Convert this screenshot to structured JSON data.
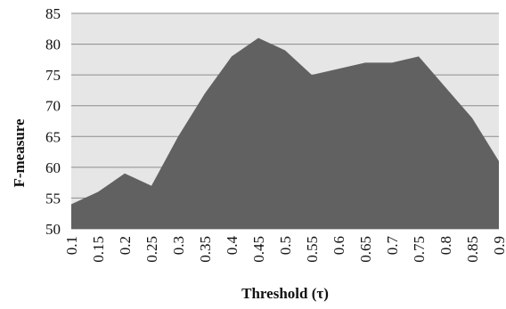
{
  "chart_data": {
    "type": "area",
    "xlabel": "Threshold (τ)",
    "ylabel": "F-measure",
    "ylim": [
      50,
      85
    ],
    "yticks": [
      50,
      55,
      60,
      65,
      70,
      75,
      80,
      85
    ],
    "categories": [
      "0.1",
      "0.15",
      "0.2",
      "0.25",
      "0.3",
      "0.35",
      "0.4",
      "0.45",
      "0.5",
      "0.55",
      "0.6",
      "0.65",
      "0.7",
      "0.75",
      "0.8",
      "0.85",
      "0.9"
    ],
    "values": [
      54,
      56,
      59,
      57,
      65,
      72,
      78,
      81,
      79,
      75,
      76,
      77,
      77,
      78,
      73,
      68,
      61
    ],
    "grid": true,
    "colors": {
      "plot_background": "#e6e6e6",
      "area_fill": "#616161",
      "gridline": "#8c8c8c"
    }
  }
}
